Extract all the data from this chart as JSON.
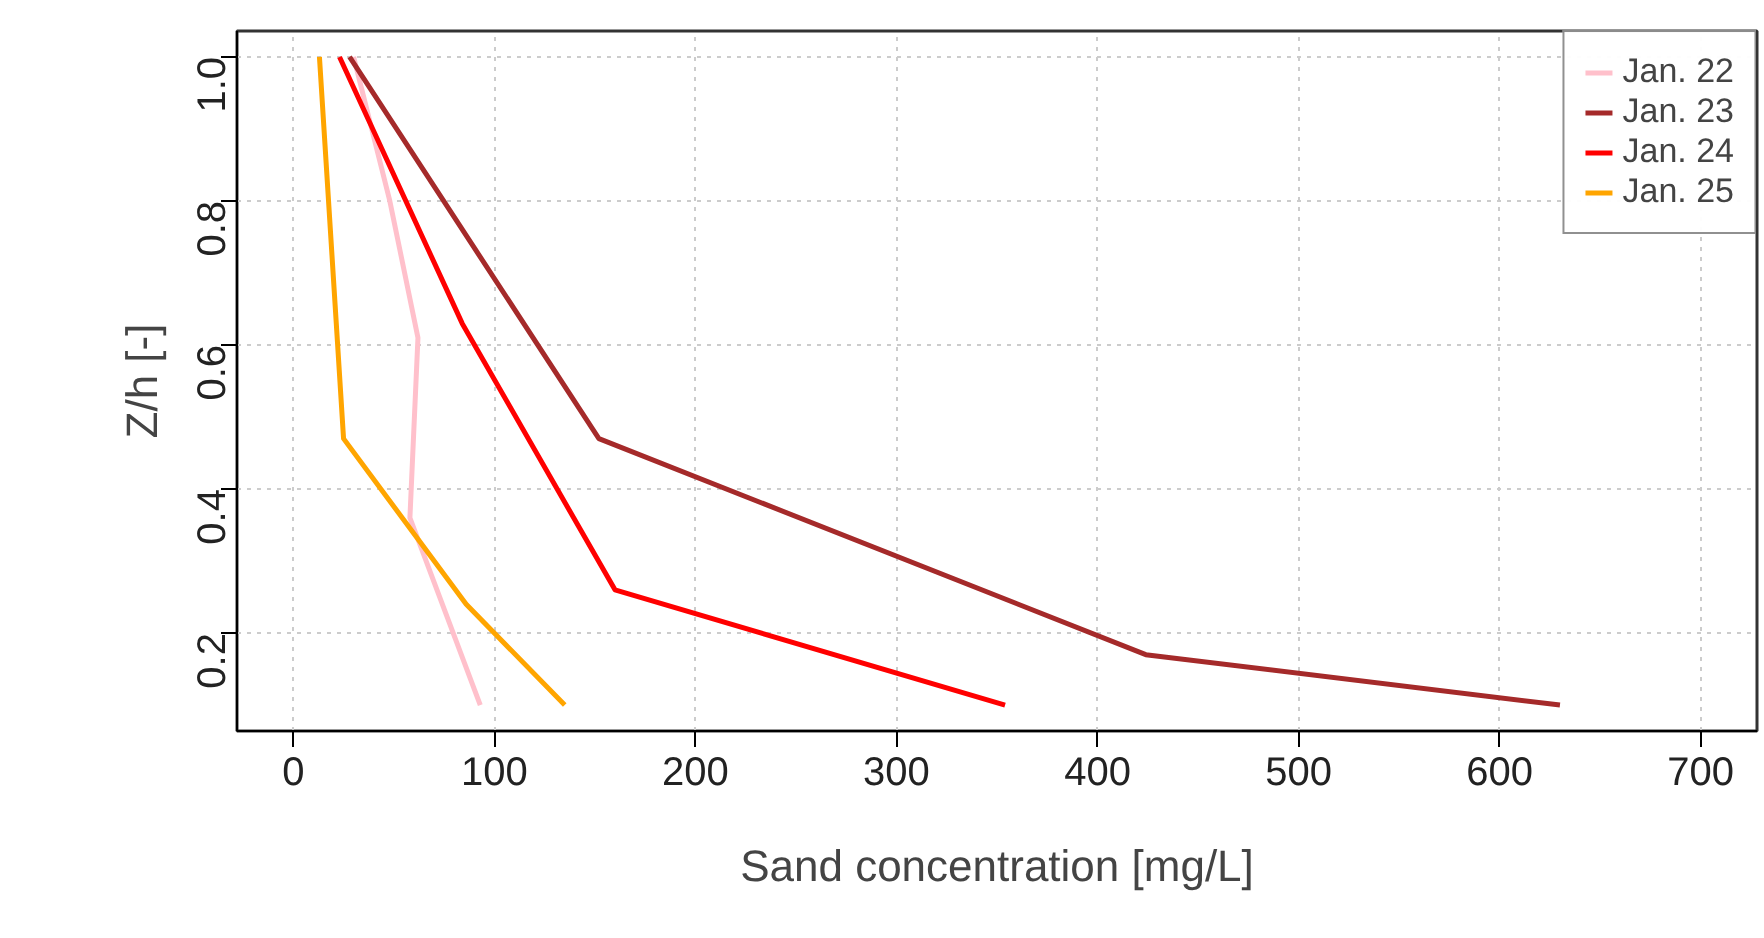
{
  "chart_data": {
    "type": "line",
    "xlabel": "Sand concentration [mg/L]",
    "ylabel": "Z/h [-]",
    "xlim": [
      -28,
      728
    ],
    "ylim": [
      0.064,
      1.036
    ],
    "xticks": [
      0,
      100,
      200,
      300,
      400,
      500,
      600,
      700
    ],
    "yticks": [
      0.2,
      0.4,
      0.6,
      0.8,
      {
        "value": 1,
        "label": "1.0"
      }
    ],
    "grid": true,
    "legend": "top right",
    "line_style": "solid",
    "marker": "none",
    "series": [
      {
        "name": "Jan. 22",
        "color": "#ffc0cb",
        "x": [
          30,
          48,
          62,
          58,
          93
        ],
        "values": [
          1.0,
          0.8,
          0.61,
          0.36,
          0.1
        ]
      },
      {
        "name": "Jan. 23",
        "color": "#a52a2a",
        "x": [
          28,
          152,
          424,
          630
        ],
        "values": [
          1.0,
          0.47,
          0.17,
          0.1
        ]
      },
      {
        "name": "Jan. 24",
        "color": "#ff0000",
        "x": [
          23,
          84,
          160,
          354
        ],
        "values": [
          1.0,
          0.63,
          0.26,
          0.1
        ]
      },
      {
        "name": "Jan. 25",
        "color": "#ffa500",
        "x": [
          13,
          25,
          86,
          135
        ],
        "values": [
          1.0,
          0.47,
          0.24,
          0.1
        ]
      }
    ]
  }
}
